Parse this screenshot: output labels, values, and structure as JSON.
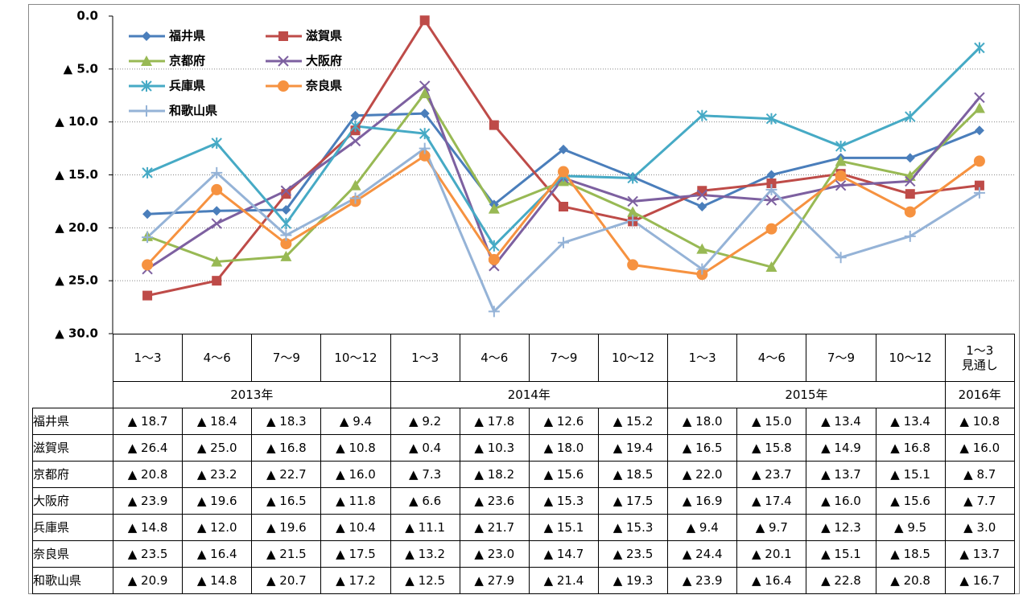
{
  "chart_data": {
    "type": "line",
    "ylim": [
      -30,
      0
    ],
    "yticks": [
      {
        "value": 0,
        "label": "0.0"
      },
      {
        "value": -5,
        "label": "▲ 5.0"
      },
      {
        "value": -10,
        "label": "▲ 10.0"
      },
      {
        "value": -15,
        "label": "▲ 15.0"
      },
      {
        "value": -20,
        "label": "▲ 20.0"
      },
      {
        "value": -25,
        "label": "▲ 25.0"
      },
      {
        "value": -30,
        "label": "▲ 30.0"
      }
    ],
    "grid": true,
    "legend": "top-left",
    "category_groups": [
      {
        "name": "2013年",
        "categories": [
          "1〜3",
          "4〜6",
          "7〜9",
          "10〜12"
        ]
      },
      {
        "name": "2014年",
        "categories": [
          "1〜3",
          "4〜6",
          "7〜9",
          "10〜12"
        ]
      },
      {
        "name": "2015年",
        "categories": [
          "1〜3",
          "4〜6",
          "7〜9",
          "10〜12"
        ]
      },
      {
        "name": "2016年",
        "categories": [
          "1〜3\n見通し"
        ]
      }
    ],
    "series": [
      {
        "name": "福井県",
        "color": "#4a7ebb",
        "marker": "diamond",
        "values": [
          -18.7,
          -18.4,
          -18.3,
          -9.4,
          -9.2,
          -17.8,
          -12.6,
          -15.2,
          -18.0,
          -15.0,
          -13.4,
          -13.4,
          -10.8
        ],
        "value_labels": [
          "▲ 18.7",
          "▲ 18.4",
          "▲ 18.3",
          "▲ 9.4",
          "▲ 9.2",
          "▲ 17.8",
          "▲ 12.6",
          "▲ 15.2",
          "▲ 18.0",
          "▲ 15.0",
          "▲ 13.4",
          "▲ 13.4",
          "▲ 10.8"
        ]
      },
      {
        "name": "滋賀県",
        "color": "#be4b48",
        "marker": "square",
        "values": [
          -26.4,
          -25.0,
          -16.8,
          -10.8,
          -0.4,
          -10.3,
          -18.0,
          -19.4,
          -16.5,
          -15.8,
          -14.9,
          -16.8,
          -16.0
        ],
        "value_labels": [
          "▲ 26.4",
          "▲ 25.0",
          "▲ 16.8",
          "▲ 10.8",
          "▲ 0.4",
          "▲ 10.3",
          "▲ 18.0",
          "▲ 19.4",
          "▲ 16.5",
          "▲ 15.8",
          "▲ 14.9",
          "▲ 16.8",
          "▲ 16.0"
        ]
      },
      {
        "name": "京都府",
        "color": "#98b954",
        "marker": "triangle",
        "values": [
          -20.8,
          -23.2,
          -22.7,
          -16.0,
          -7.3,
          -18.2,
          -15.6,
          -18.5,
          -22.0,
          -23.7,
          -13.7,
          -15.1,
          -8.7
        ],
        "value_labels": [
          "▲ 20.8",
          "▲ 23.2",
          "▲ 22.7",
          "▲ 16.0",
          "▲ 7.3",
          "▲ 18.2",
          "▲ 15.6",
          "▲ 18.5",
          "▲ 22.0",
          "▲ 23.7",
          "▲ 13.7",
          "▲ 15.1",
          "▲ 8.7"
        ]
      },
      {
        "name": "大阪府",
        "color": "#7d60a0",
        "marker": "x",
        "values": [
          -23.9,
          -19.6,
          -16.5,
          -11.8,
          -6.6,
          -23.6,
          -15.3,
          -17.5,
          -16.9,
          -17.4,
          -16.0,
          -15.6,
          -7.7
        ],
        "value_labels": [
          "▲ 23.9",
          "▲ 19.6",
          "▲ 16.5",
          "▲ 11.8",
          "▲ 6.6",
          "▲ 23.6",
          "▲ 15.3",
          "▲ 17.5",
          "▲ 16.9",
          "▲ 17.4",
          "▲ 16.0",
          "▲ 15.6",
          "▲ 7.7"
        ]
      },
      {
        "name": "兵庫県",
        "color": "#46aac5",
        "marker": "asterisk",
        "values": [
          -14.8,
          -12.0,
          -19.6,
          -10.4,
          -11.1,
          -21.7,
          -15.1,
          -15.3,
          -9.4,
          -9.7,
          -12.3,
          -9.5,
          -3.0
        ],
        "value_labels": [
          "▲ 14.8",
          "▲ 12.0",
          "▲ 19.6",
          "▲ 10.4",
          "▲ 11.1",
          "▲ 21.7",
          "▲ 15.1",
          "▲ 15.3",
          "▲ 9.4",
          "▲ 9.7",
          "▲ 12.3",
          "▲ 9.5",
          "▲ 3.0"
        ]
      },
      {
        "name": "奈良県",
        "color": "#f69240",
        "marker": "circle",
        "values": [
          -23.5,
          -16.4,
          -21.5,
          -17.5,
          -13.2,
          -23.0,
          -14.7,
          -23.5,
          -24.4,
          -20.1,
          -15.1,
          -18.5,
          -13.7
        ],
        "value_labels": [
          "▲ 23.5",
          "▲ 16.4",
          "▲ 21.5",
          "▲ 17.5",
          "▲ 13.2",
          "▲ 23.0",
          "▲ 14.7",
          "▲ 23.5",
          "▲ 24.4",
          "▲ 20.1",
          "▲ 15.1",
          "▲ 18.5",
          "▲ 13.7"
        ]
      },
      {
        "name": "和歌山県",
        "color": "#95b3d7",
        "marker": "plus",
        "values": [
          -20.9,
          -14.8,
          -20.7,
          -17.2,
          -12.5,
          -27.9,
          -21.4,
          -19.3,
          -23.9,
          -16.4,
          -22.8,
          -20.8,
          -16.7
        ],
        "value_labels": [
          "▲ 20.9",
          "▲ 14.8",
          "▲ 20.7",
          "▲ 17.2",
          "▲ 12.5",
          "▲ 27.9",
          "▲ 21.4",
          "▲ 19.3",
          "▲ 23.9",
          "▲ 16.4",
          "▲ 22.8",
          "▲ 20.8",
          "▲ 16.7"
        ]
      }
    ]
  }
}
